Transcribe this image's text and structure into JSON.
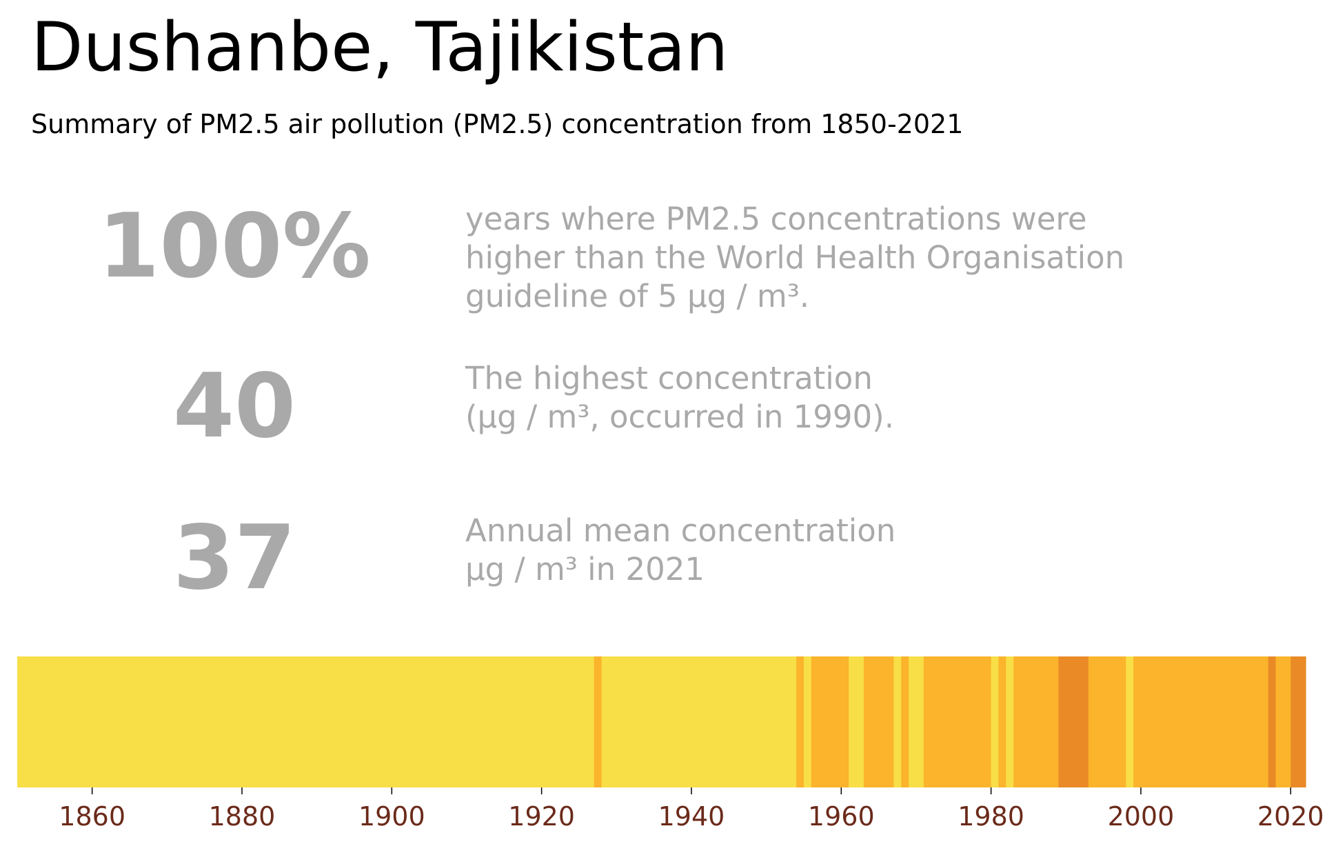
{
  "title": "Dushanbe, Tajikistan",
  "subtitle": "Summary of PM2.5 air pollution (PM2.5) concentration from 1850-2021",
  "stats": [
    {
      "value": "100%",
      "lines": [
        "years where PM2.5 concentrations were",
        "higher than the World Health Organisation",
        "guideline of 5 µg / m³."
      ]
    },
    {
      "value": "40",
      "lines": [
        "The highest concentration",
        "(µg / m³, occurred in 1990)."
      ]
    },
    {
      "value": "37",
      "lines": [
        "Annual mean concentration",
        "µg / m³ in 2021"
      ]
    }
  ],
  "colors": {
    "low": "#f8de47",
    "mid": "#fbb42b",
    "high": "#e98a27",
    "tick_label": "#6b2a1a",
    "stat_text": "#a9a9a9"
  },
  "chart_data": {
    "type": "heatmap",
    "xlim": [
      1850,
      2022
    ],
    "x_ticks": [
      1860,
      1880,
      1900,
      1920,
      1940,
      1960,
      1980,
      2000,
      2020
    ],
    "level_legend": [
      "low",
      "mid",
      "high"
    ],
    "segments": [
      {
        "start": 1850,
        "end": 1927,
        "level": "low"
      },
      {
        "start": 1927,
        "end": 1928,
        "level": "mid"
      },
      {
        "start": 1928,
        "end": 1954,
        "level": "low"
      },
      {
        "start": 1954,
        "end": 1955,
        "level": "mid"
      },
      {
        "start": 1955,
        "end": 1956,
        "level": "low"
      },
      {
        "start": 1956,
        "end": 1961,
        "level": "mid"
      },
      {
        "start": 1961,
        "end": 1963,
        "level": "low"
      },
      {
        "start": 1963,
        "end": 1967,
        "level": "mid"
      },
      {
        "start": 1967,
        "end": 1968,
        "level": "low"
      },
      {
        "start": 1968,
        "end": 1969,
        "level": "mid"
      },
      {
        "start": 1969,
        "end": 1971,
        "level": "low"
      },
      {
        "start": 1971,
        "end": 1980,
        "level": "mid"
      },
      {
        "start": 1980,
        "end": 1981,
        "level": "low"
      },
      {
        "start": 1981,
        "end": 1982,
        "level": "mid"
      },
      {
        "start": 1982,
        "end": 1983,
        "level": "low"
      },
      {
        "start": 1983,
        "end": 1989,
        "level": "mid"
      },
      {
        "start": 1989,
        "end": 1993,
        "level": "high"
      },
      {
        "start": 1993,
        "end": 1998,
        "level": "mid"
      },
      {
        "start": 1998,
        "end": 1999,
        "level": "low"
      },
      {
        "start": 1999,
        "end": 2017,
        "level": "mid"
      },
      {
        "start": 2017,
        "end": 2018,
        "level": "high"
      },
      {
        "start": 2018,
        "end": 2020,
        "level": "mid"
      },
      {
        "start": 2020,
        "end": 2022,
        "level": "high"
      }
    ]
  }
}
